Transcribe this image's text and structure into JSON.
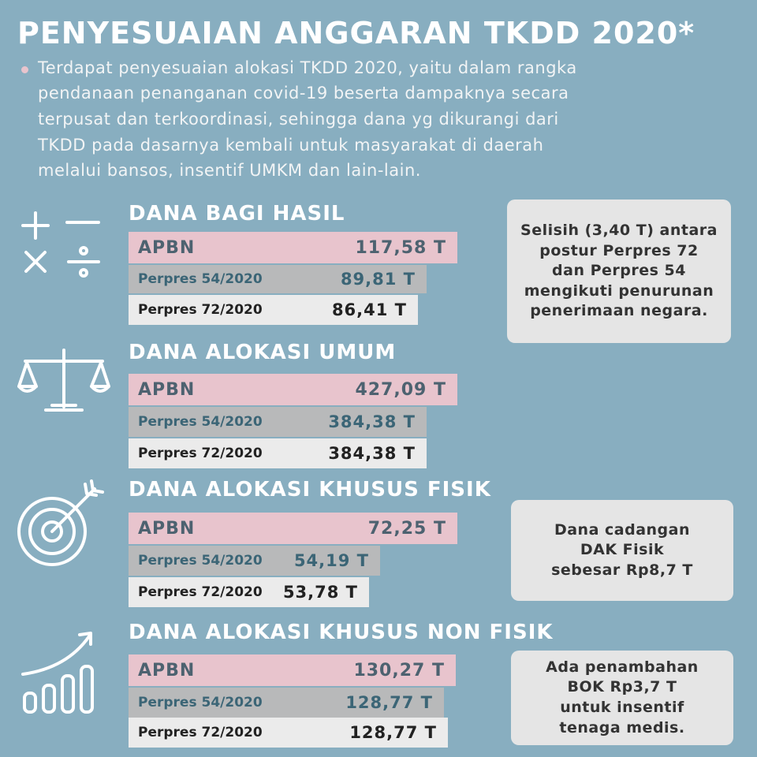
{
  "title": "PENYESUAIAN ANGGARAN TKDD 2020*",
  "paragraph": [
    "Terdapat penyesuaian alokasi TKDD 2020, yaitu dalam rangka",
    "pendanaan penanganan covid-19 beserta dampaknya secara",
    "terpusat dan terkoordinasi, sehingga dana yg dikurangi dari",
    "TKDD pada dasarnya kembali untuk masyarakat di daerah",
    "melalui bansos, insentif UMKM dan lain-lain."
  ],
  "sections": [
    {
      "heading": "DANA BAGI HASIL",
      "rows": [
        {
          "label": "APBN",
          "value": "117,58 T"
        },
        {
          "label": "Perpres 54/2020",
          "value": "89,81 T"
        },
        {
          "label": "Perpres 72/2020",
          "value": "86,41 T"
        }
      ]
    },
    {
      "heading": "DANA ALOKASI UMUM",
      "rows": [
        {
          "label": "APBN",
          "value": "427,09 T"
        },
        {
          "label": "Perpres 54/2020",
          "value": "384,38 T"
        },
        {
          "label": "Perpres 72/2020",
          "value": "384,38 T"
        }
      ]
    },
    {
      "heading": "DANA ALOKASI KHUSUS FISIK",
      "rows": [
        {
          "label": "APBN",
          "value": "72,25 T"
        },
        {
          "label": "Perpres 54/2020",
          "value": "54,19 T"
        },
        {
          "label": "Perpres 72/2020",
          "value": "53,78 T"
        }
      ]
    },
    {
      "heading": "DANA ALOKASI KHUSUS NON FISIK",
      "rows": [
        {
          "label": "APBN",
          "value": "130,27 T"
        },
        {
          "label": "Perpres 54/2020",
          "value": "128,77 T"
        },
        {
          "label": "Perpres 72/2020",
          "value": "128,77 T"
        }
      ]
    }
  ],
  "notes": [
    [
      "Selisih (3,40 T) antara",
      "postur Perpres 72",
      "dan Perpres 54",
      "mengikuti penurunan",
      "penerimaan negara."
    ],
    [
      "Dana cadangan",
      "DAK Fisik",
      "sebesar Rp8,7 T"
    ],
    [
      "Ada penambahan",
      "BOK Rp3,7 T",
      "untuk insentif",
      "tenaga medis."
    ]
  ]
}
